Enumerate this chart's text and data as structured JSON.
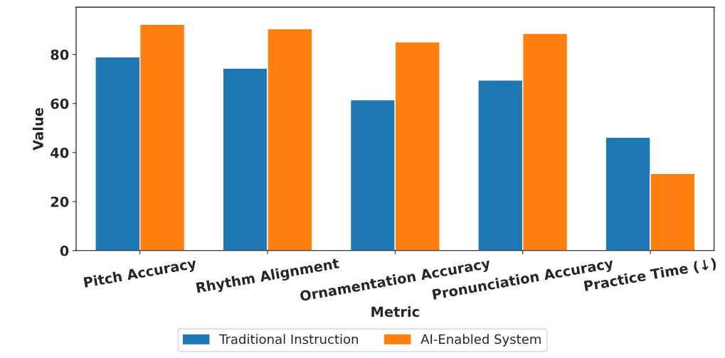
{
  "chart_data": {
    "type": "bar",
    "xlabel": "Metric",
    "ylabel": "Value",
    "categories": [
      "Pitch Accuracy",
      "Rhythm Alignment",
      "Ornamentation Accuracy",
      "Pronunciation Accuracy",
      "Practice Time (↓)"
    ],
    "series": [
      {
        "name": "Traditional Instruction",
        "color": "#1f77b4",
        "values": [
          79,
          74.4,
          61.5,
          69.5,
          46.2
        ]
      },
      {
        "name": "AI-Enabled System",
        "color": "#ff7f0e",
        "values": [
          92.3,
          90.5,
          85.1,
          88.6,
          31.4
        ]
      }
    ],
    "ylim": [
      0,
      99.3
    ],
    "yticks": [
      0,
      20,
      40,
      60,
      80
    ],
    "grid": false,
    "legend": "bottom"
  }
}
